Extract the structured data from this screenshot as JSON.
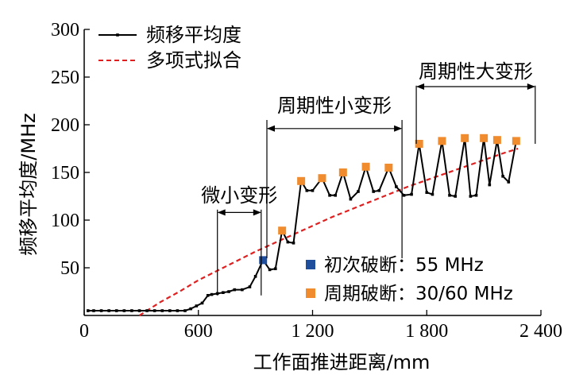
{
  "chart_data": {
    "type": "line",
    "xlabel": "工作面推进距离/mm",
    "ylabel": "频移平均度/MHz",
    "xlim": [
      0,
      2400
    ],
    "ylim": [
      0,
      300
    ],
    "x_ticks": [
      {
        "value": 0,
        "label": "0"
      },
      {
        "value": 600,
        "label": "600"
      },
      {
        "value": 1200,
        "label": "1 200"
      },
      {
        "value": 1800,
        "label": "1 800"
      },
      {
        "value": 2400,
        "label": "2 400"
      }
    ],
    "y_ticks": [
      {
        "value": 50,
        "label": "50"
      },
      {
        "value": 100,
        "label": "100"
      },
      {
        "value": 150,
        "label": "150"
      },
      {
        "value": 200,
        "label": "200"
      },
      {
        "value": 250,
        "label": "250"
      },
      {
        "value": 300,
        "label": "300"
      }
    ],
    "series": [
      {
        "name": "频移平均度",
        "color": "#000000",
        "points": [
          [
            20,
            5
          ],
          [
            50,
            5
          ],
          [
            90,
            5
          ],
          [
            130,
            5
          ],
          [
            170,
            5
          ],
          [
            210,
            5
          ],
          [
            250,
            5
          ],
          [
            290,
            5
          ],
          [
            330,
            5
          ],
          [
            370,
            5
          ],
          [
            410,
            5
          ],
          [
            450,
            5
          ],
          [
            490,
            5
          ],
          [
            530,
            5
          ],
          [
            560,
            7
          ],
          [
            590,
            10
          ],
          [
            620,
            13
          ],
          [
            650,
            21
          ],
          [
            670,
            22
          ],
          [
            700,
            23
          ],
          [
            730,
            24
          ],
          [
            760,
            25
          ],
          [
            790,
            27
          ],
          [
            830,
            27
          ],
          [
            870,
            30
          ],
          [
            900,
            41
          ],
          [
            940,
            58
          ],
          [
            975,
            48
          ],
          [
            1005,
            49
          ],
          [
            1040,
            89
          ],
          [
            1070,
            77
          ],
          [
            1100,
            76
          ],
          [
            1140,
            141
          ],
          [
            1170,
            131
          ],
          [
            1200,
            131
          ],
          [
            1250,
            144
          ],
          [
            1290,
            126
          ],
          [
            1320,
            126
          ],
          [
            1360,
            150
          ],
          [
            1400,
            122
          ],
          [
            1440,
            130
          ],
          [
            1480,
            156
          ],
          [
            1520,
            130
          ],
          [
            1550,
            131
          ],
          [
            1600,
            155
          ],
          [
            1640,
            135
          ],
          [
            1680,
            126
          ],
          [
            1720,
            127
          ],
          [
            1760,
            180
          ],
          [
            1800,
            129
          ],
          [
            1830,
            127
          ],
          [
            1880,
            183
          ],
          [
            1920,
            126
          ],
          [
            1950,
            125
          ],
          [
            2000,
            186
          ],
          [
            2030,
            125
          ],
          [
            2060,
            126
          ],
          [
            2100,
            186
          ],
          [
            2130,
            137
          ],
          [
            2170,
            184
          ],
          [
            2200,
            146
          ],
          [
            2230,
            140
          ],
          [
            2270,
            183
          ]
        ]
      },
      {
        "name": "多项式拟合",
        "color": "#e02020",
        "dashed": true,
        "points": [
          [
            290,
            0
          ],
          [
            400,
            14
          ],
          [
            500,
            25
          ],
          [
            600,
            37
          ],
          [
            700,
            47
          ],
          [
            800,
            57
          ],
          [
            900,
            67
          ],
          [
            1000,
            76
          ],
          [
            1100,
            85
          ],
          [
            1200,
            94
          ],
          [
            1300,
            103
          ],
          [
            1400,
            111
          ],
          [
            1500,
            119
          ],
          [
            1600,
            127
          ],
          [
            1700,
            135
          ],
          [
            1800,
            142
          ],
          [
            1900,
            149
          ],
          [
            2000,
            156
          ],
          [
            2100,
            163
          ],
          [
            2200,
            170
          ],
          [
            2280,
            175
          ]
        ]
      }
    ],
    "first_break": {
      "name": "初次破断：55 MHz",
      "color": "#1f4e9c",
      "points": [
        [
          940,
          58
        ]
      ]
    },
    "periodic_break": {
      "name": "周期破断：30/60 MHz",
      "color": "#f08c2e",
      "points": [
        [
          1040,
          89
        ],
        [
          1140,
          141
        ],
        [
          1250,
          144
        ],
        [
          1360,
          150
        ],
        [
          1480,
          156
        ],
        [
          1600,
          155
        ],
        [
          1760,
          180
        ],
        [
          1880,
          183
        ],
        [
          2000,
          186
        ],
        [
          2100,
          186
        ],
        [
          2170,
          184
        ],
        [
          2270,
          183
        ]
      ]
    },
    "annotations": [
      {
        "text": "微小变形",
        "x_start": 700,
        "x_end": 930,
        "y_top": 111,
        "y_arrow": 108,
        "y_bottom": 21
      },
      {
        "text": "周期性小变形",
        "x_start": 960,
        "x_end": 1670,
        "y_top": 205,
        "y_arrow": 196,
        "y_bottom": 60
      },
      {
        "text": "周期性大变形",
        "x_start": 1745,
        "x_end": 2370,
        "y_top": 241,
        "y_arrow": 240,
        "y_bottom": 180
      }
    ],
    "legend": {
      "position": "top-left",
      "entries": [
        "频移平均度",
        "多项式拟合"
      ]
    },
    "marker_legend": {
      "position": "bottom-right",
      "entries": [
        "初次破断：55 MHz",
        "周期破断：30/60 MHz"
      ]
    },
    "grid": false
  }
}
